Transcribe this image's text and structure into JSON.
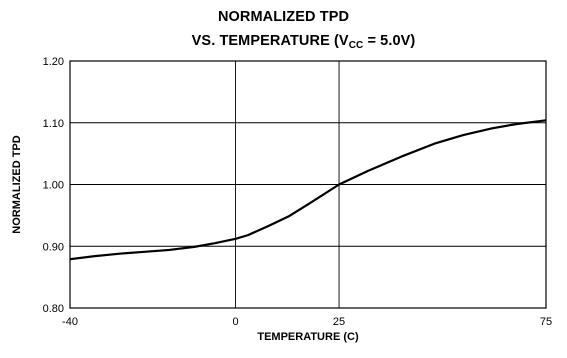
{
  "chart_data": {
    "type": "line",
    "title": "NORMALIZED TPD",
    "subtitle": {
      "prefix": "VS. TEMPERATURE (V",
      "subscript": "CC",
      "suffix": " = 5.0V)"
    },
    "xlabel": "TEMPERATURE (C)",
    "ylabel": "NORMALIZED TPD",
    "xlim": [
      -40,
      75
    ],
    "ylim": [
      0.8,
      1.2
    ],
    "xticks": [
      -40,
      0,
      25,
      75
    ],
    "xtick_labels": [
      "-40",
      "0",
      "25",
      "75"
    ],
    "yticks": [
      0.8,
      0.9,
      1.0,
      1.1,
      1.2
    ],
    "ytick_labels": [
      "0.80",
      "0.90",
      "1.00",
      "1.10",
      "1.20"
    ],
    "grid": true,
    "series": [
      {
        "x": [
          -40,
          -34,
          -28,
          -22,
          -16,
          -10,
          -5,
          0,
          3,
          8,
          13,
          18,
          25,
          32,
          40,
          48,
          55,
          62,
          68,
          75
        ],
        "y": [
          0.879,
          0.884,
          0.888,
          0.891,
          0.894,
          0.899,
          0.905,
          0.912,
          0.918,
          0.933,
          0.949,
          0.97,
          1.0,
          1.022,
          1.045,
          1.066,
          1.08,
          1.091,
          1.098,
          1.104
        ]
      }
    ]
  },
  "colors": {
    "line": "#000000",
    "grid": "#000000",
    "background": "#ffffff"
  }
}
